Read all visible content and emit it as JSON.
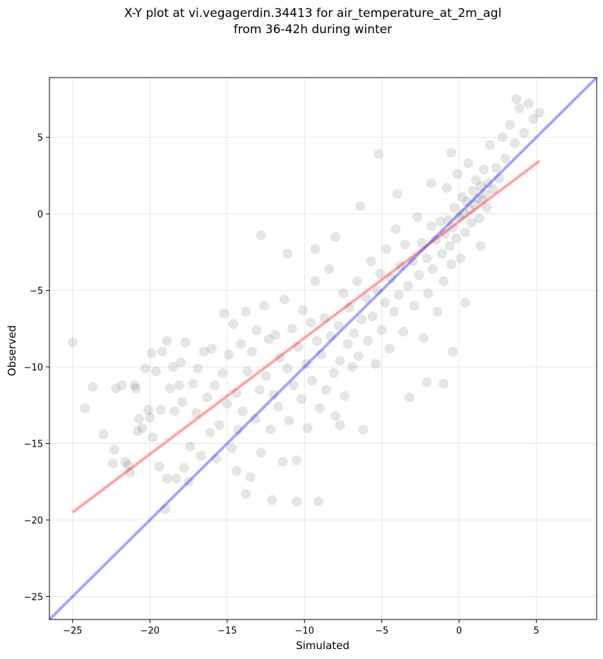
{
  "chart_data": {
    "type": "scatter",
    "title": "X-Y plot at vi.vegagerdin.34413 for air_temperature_at_2m_agl",
    "subtitle": "from 36-42h during winter",
    "xlabel": "Simulated",
    "ylabel": "Observed",
    "xlim": [
      -26.5,
      8.9
    ],
    "ylim": [
      -26.5,
      8.9
    ],
    "xticks": [
      -25,
      -20,
      -15,
      -10,
      -5,
      0,
      5
    ],
    "yticks": [
      -25,
      -20,
      -15,
      -10,
      -5,
      0,
      5
    ],
    "xtick_labels": [
      "−25",
      "−20",
      "−15",
      "−10",
      "−5",
      "0",
      "5"
    ],
    "ytick_labels": [
      "−25",
      "−20",
      "−15",
      "−10",
      "−5",
      "0",
      "5"
    ],
    "grid": true,
    "point_color": "#000000",
    "point_alpha": 0.1,
    "points": [
      [
        -25.0,
        -8.4
      ],
      [
        -24.2,
        -12.7
      ],
      [
        -23.7,
        -11.3
      ],
      [
        -23.0,
        -14.4
      ],
      [
        -22.4,
        -16.3
      ],
      [
        -22.3,
        -15.4
      ],
      [
        -22.2,
        -11.4
      ],
      [
        -21.8,
        -11.2
      ],
      [
        -21.6,
        -16.2
      ],
      [
        -21.4,
        -16.4
      ],
      [
        -21.0,
        -11.2
      ],
      [
        -20.9,
        -11.4
      ],
      [
        -20.8,
        -14.2
      ],
      [
        -20.5,
        -14.0
      ],
      [
        -20.3,
        -10.1
      ],
      [
        -20.1,
        -12.8
      ],
      [
        -20.0,
        -13.3
      ],
      [
        -19.9,
        -9.1
      ],
      [
        -19.8,
        -14.6
      ],
      [
        -19.6,
        -10.3
      ],
      [
        -19.4,
        -16.5
      ],
      [
        -19.3,
        -12.8
      ],
      [
        -19.2,
        -9.0
      ],
      [
        -19.0,
        -19.3
      ],
      [
        -18.9,
        -8.3
      ],
      [
        -18.7,
        -11.4
      ],
      [
        -18.5,
        -10.0
      ],
      [
        -18.4,
        -12.9
      ],
      [
        -18.3,
        -17.3
      ],
      [
        -18.1,
        -11.2
      ],
      [
        -18.0,
        -9.7
      ],
      [
        -17.9,
        -12.3
      ],
      [
        -17.7,
        -8.4
      ],
      [
        -17.5,
        -17.5
      ],
      [
        -17.4,
        -15.2
      ],
      [
        -17.2,
        -11.1
      ],
      [
        -17.0,
        -13.0
      ],
      [
        -16.9,
        -10.1
      ],
      [
        -16.7,
        -15.8
      ],
      [
        -16.5,
        -9.0
      ],
      [
        -16.3,
        -12.0
      ],
      [
        -16.1,
        -14.3
      ],
      [
        -16.0,
        -8.8
      ],
      [
        -15.8,
        -11.2
      ],
      [
        -15.7,
        -16.0
      ],
      [
        -15.5,
        -13.8
      ],
      [
        -15.3,
        -10.4
      ],
      [
        -15.2,
        -6.5
      ],
      [
        -15.0,
        -12.4
      ],
      [
        -14.9,
        -9.2
      ],
      [
        -14.7,
        -15.3
      ],
      [
        -14.6,
        -7.2
      ],
      [
        -14.4,
        -11.7
      ],
      [
        -14.3,
        -14.1
      ],
      [
        -14.1,
        -8.5
      ],
      [
        -14.0,
        -12.9
      ],
      [
        -13.8,
        -6.4
      ],
      [
        -13.7,
        -10.3
      ],
      [
        -13.5,
        -17.2
      ],
      [
        -13.4,
        -9.0
      ],
      [
        -13.2,
        -13.4
      ],
      [
        -13.1,
        -7.6
      ],
      [
        -12.9,
        -11.5
      ],
      [
        -12.8,
        -15.6
      ],
      [
        -12.6,
        -6.0
      ],
      [
        -12.5,
        -10.6
      ],
      [
        -12.3,
        -8.2
      ],
      [
        -12.2,
        -14.1
      ],
      [
        -12.0,
        -11.8
      ],
      [
        -11.9,
        -7.9
      ],
      [
        -11.7,
        -12.6
      ],
      [
        -11.6,
        -9.4
      ],
      [
        -11.4,
        -16.2
      ],
      [
        -11.3,
        -5.6
      ],
      [
        -11.1,
        -10.1
      ],
      [
        -11.0,
        -13.5
      ],
      [
        -10.8,
        -7.5
      ],
      [
        -10.7,
        -11.2
      ],
      [
        -10.5,
        -18.8
      ],
      [
        -10.4,
        -8.7
      ],
      [
        -10.2,
        -12.1
      ],
      [
        -10.1,
        -6.3
      ],
      [
        -9.9,
        -9.8
      ],
      [
        -9.8,
        -14.0
      ],
      [
        -9.6,
        -7.1
      ],
      [
        -9.5,
        -10.9
      ],
      [
        -9.3,
        -4.4
      ],
      [
        -9.2,
        -8.3
      ],
      [
        -9.0,
        -12.7
      ],
      [
        -8.9,
        -9.2
      ],
      [
        -8.7,
        -6.8
      ],
      [
        -8.6,
        -11.5
      ],
      [
        -8.4,
        -3.6
      ],
      [
        -8.3,
        -8.0
      ],
      [
        -8.1,
        -10.4
      ],
      [
        -8.0,
        -13.2
      ],
      [
        -7.8,
        -7.3
      ],
      [
        -7.7,
        -9.6
      ],
      [
        -7.5,
        -5.2
      ],
      [
        -7.4,
        -11.9
      ],
      [
        -7.2,
        -8.5
      ],
      [
        -7.1,
        -6.1
      ],
      [
        -6.9,
        -10.0
      ],
      [
        -6.8,
        -7.8
      ],
      [
        -6.6,
        -4.4
      ],
      [
        -6.5,
        -9.3
      ],
      [
        -6.3,
        -6.9
      ],
      [
        -6.2,
        -14.1
      ],
      [
        -6.0,
        -5.5
      ],
      [
        -5.9,
        -8.3
      ],
      [
        -5.7,
        -3.1
      ],
      [
        -5.6,
        -6.7
      ],
      [
        -5.4,
        -9.8
      ],
      [
        -5.3,
        -5.0
      ],
      [
        -5.1,
        -3.9
      ],
      [
        -5.0,
        -7.6
      ],
      [
        -4.8,
        -5.8
      ],
      [
        -4.7,
        -2.3
      ],
      [
        -4.5,
        -8.8
      ],
      [
        -4.4,
        -4.2
      ],
      [
        -4.2,
        -6.4
      ],
      [
        -4.1,
        -1.0
      ],
      [
        -3.9,
        -5.3
      ],
      [
        -3.8,
        -3.4
      ],
      [
        -3.6,
        -7.7
      ],
      [
        -3.5,
        -2.0
      ],
      [
        -3.3,
        -4.7
      ],
      [
        -3.2,
        -12.0
      ],
      [
        -3.0,
        -3.1
      ],
      [
        -2.9,
        -6.0
      ],
      [
        -2.7,
        -0.2
      ],
      [
        -2.6,
        -4.0
      ],
      [
        -2.4,
        -1.9
      ],
      [
        -2.3,
        -8.1
      ],
      [
        -2.1,
        -2.9
      ],
      [
        -2.0,
        -5.2
      ],
      [
        -1.8,
        -0.8
      ],
      [
        -1.7,
        -3.6
      ],
      [
        -1.5,
        -1.7
      ],
      [
        -1.4,
        -6.4
      ],
      [
        -1.2,
        -0.5
      ],
      [
        -1.1,
        -2.6
      ],
      [
        -1.0,
        -4.4
      ],
      [
        -0.9,
        -1.3
      ],
      [
        -0.8,
        1.7
      ],
      [
        -0.7,
        -0.4
      ],
      [
        -0.6,
        -2.1
      ],
      [
        -0.5,
        -3.3
      ],
      [
        -0.4,
        -0.9
      ],
      [
        -0.3,
        0.4
      ],
      [
        -0.2,
        -1.6
      ],
      [
        -0.1,
        2.6
      ],
      [
        0.0,
        -0.2
      ],
      [
        0.1,
        -2.9
      ],
      [
        0.2,
        1.1
      ],
      [
        0.3,
        0.0
      ],
      [
        0.4,
        -1.2
      ],
      [
        0.5,
        0.8
      ],
      [
        0.6,
        3.3
      ],
      [
        0.7,
        0.3
      ],
      [
        0.8,
        -0.6
      ],
      [
        0.9,
        1.5
      ],
      [
        1.0,
        0.6
      ],
      [
        1.1,
        2.2
      ],
      [
        1.2,
        1.0
      ],
      [
        1.3,
        -0.3
      ],
      [
        1.4,
        1.8
      ],
      [
        1.5,
        0.9
      ],
      [
        1.6,
        2.9
      ],
      [
        1.7,
        1.3
      ],
      [
        1.8,
        0.4
      ],
      [
        1.9,
        2.0
      ],
      [
        2.0,
        4.5
      ],
      [
        2.2,
        1.6
      ],
      [
        2.4,
        3.0
      ],
      [
        2.6,
        2.3
      ],
      [
        2.8,
        5.0
      ],
      [
        3.0,
        3.6
      ],
      [
        3.3,
        5.8
      ],
      [
        3.6,
        4.6
      ],
      [
        3.9,
        6.9
      ],
      [
        4.2,
        5.3
      ],
      [
        4.5,
        7.2
      ],
      [
        4.8,
        6.2
      ],
      [
        5.2,
        6.6
      ],
      [
        3.7,
        7.5
      ],
      [
        -0.5,
        4.0
      ],
      [
        -1.8,
        2.0
      ],
      [
        -5.2,
        3.9
      ],
      [
        -12.8,
        -1.4
      ],
      [
        -8.0,
        -1.5
      ],
      [
        -9.3,
        -2.3
      ],
      [
        -11.1,
        -2.6
      ],
      [
        -4.0,
        1.3
      ],
      [
        -6.4,
        0.5
      ],
      [
        -9.1,
        -18.8
      ],
      [
        -12.1,
        -18.7
      ],
      [
        -13.8,
        -18.3
      ],
      [
        -14.4,
        -16.8
      ],
      [
        -17.8,
        -16.6
      ],
      [
        -18.9,
        -17.3
      ],
      [
        -20.7,
        -13.4
      ],
      [
        -21.3,
        -16.9
      ],
      [
        -1.0,
        -11.1
      ],
      [
        -2.1,
        -11.0
      ],
      [
        -0.4,
        -9.0
      ],
      [
        0.4,
        -5.8
      ],
      [
        1.4,
        -2.1
      ],
      [
        -7.7,
        -13.8
      ],
      [
        -10.5,
        -16.1
      ]
    ],
    "series": [
      {
        "name": "",
        "type": "line",
        "color": "#ff0000",
        "alpha": 0.35,
        "x": [
          -25.0,
          5.2
        ],
        "y": [
          -19.5,
          3.45
        ]
      },
      {
        "name": "",
        "type": "line",
        "color": "#0000ff",
        "alpha": 0.35,
        "x": [
          -26.5,
          8.9
        ],
        "y": [
          -26.5,
          8.9
        ]
      }
    ]
  }
}
